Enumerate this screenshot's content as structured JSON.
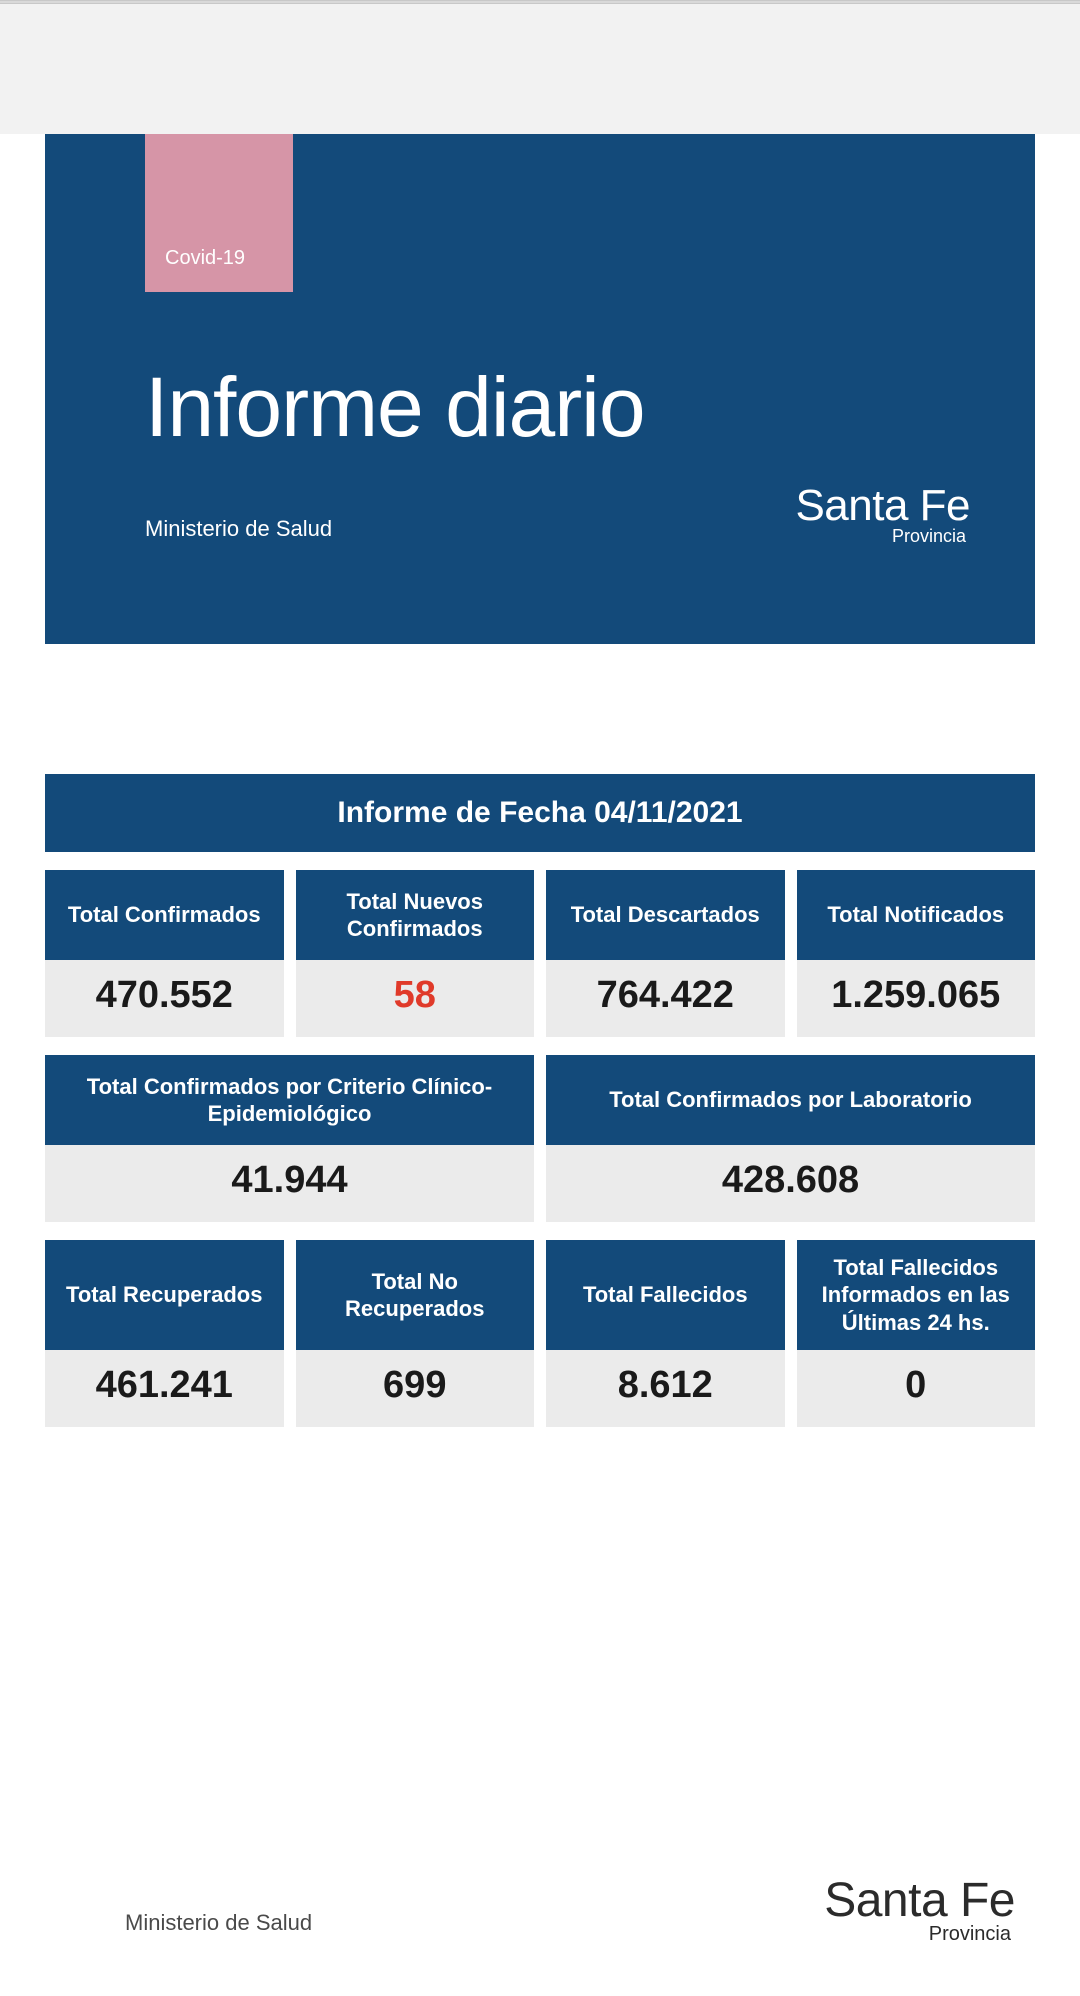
{
  "colors": {
    "primary": "#134a7a",
    "pink": "#d695a7",
    "value_bg": "#ebebeb",
    "highlight": "#e03a2a",
    "grey_header": "#f2f2f2",
    "text_dark": "#1a1a1a"
  },
  "hero": {
    "tag": "Covid-19",
    "title": "Informe diario",
    "subtitle": "Ministerio de Salud",
    "logo_main": "Santa Fe",
    "logo_sub": "Provincia"
  },
  "date_bar": "Informe de Fecha 04/11/2021",
  "row1": [
    {
      "label": "Total Confirmados",
      "value": "470.552",
      "highlight": false
    },
    {
      "label": "Total Nuevos Confirmados",
      "value": "58",
      "highlight": true
    },
    {
      "label": "Total Descartados",
      "value": "764.422",
      "highlight": false
    },
    {
      "label": "Total Notificados",
      "value": "1.259.065",
      "highlight": false
    }
  ],
  "row2": [
    {
      "label": "Total Confirmados por Criterio Clínico-Epidemiológico",
      "value": "41.944",
      "highlight": false
    },
    {
      "label": "Total Confirmados por Laboratorio",
      "value": "428.608",
      "highlight": false
    }
  ],
  "row3": [
    {
      "label": "Total Recuperados",
      "value": "461.241",
      "highlight": false
    },
    {
      "label": "Total No Recuperados",
      "value": "699",
      "highlight": false
    },
    {
      "label": "Total Fallecidos",
      "value": "8.612",
      "highlight": false
    },
    {
      "label": "Total Fallecidos Informados en las Últimas 24 hs.",
      "value": "0",
      "highlight": false
    }
  ],
  "footer": {
    "left": "Ministerio de Salud",
    "logo_main": "Santa Fe",
    "logo_sub": "Provincia"
  }
}
